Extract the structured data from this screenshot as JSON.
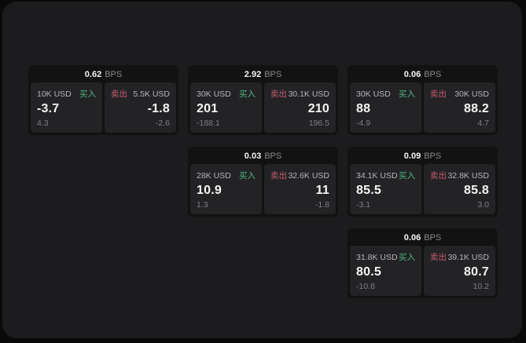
{
  "colors": {
    "page_bg": "#0a0a0a",
    "panel_bg": "#1c1c1e",
    "card_bg": "#121213",
    "subcard_bg": "#232326",
    "value_primary": "#f5f5f5",
    "label_gray": "#b5b5b8",
    "muted_gray": "#7f7f84",
    "bps_gray": "#8a8a8e",
    "buy_green": "#4fb87e",
    "sell_red": "#c65b6e"
  },
  "labels": {
    "bps_unit": "BPS",
    "buy": "买入",
    "sell": "卖出"
  },
  "cards": [
    {
      "row": 1,
      "col": 1,
      "bps": "0.62",
      "buy": {
        "amount": "10K USD",
        "value": "-3.7",
        "sub": "4.3"
      },
      "sell": {
        "amount": "5.5K USD",
        "value": "-1.8",
        "sub": "-2.6"
      }
    },
    {
      "row": 1,
      "col": 2,
      "bps": "2.92",
      "buy": {
        "amount": "30K USD",
        "value": "201",
        "sub": "-188.1"
      },
      "sell": {
        "amount": "30.1K USD",
        "value": "210",
        "sub": "196.5"
      }
    },
    {
      "row": 1,
      "col": 3,
      "bps": "0.06",
      "buy": {
        "amount": "30K USD",
        "value": "88",
        "sub": "-4.9"
      },
      "sell": {
        "amount": "30K USD",
        "value": "88.2",
        "sub": "4.7"
      }
    },
    {
      "row": 2,
      "col": 2,
      "bps": "0.03",
      "buy": {
        "amount": "28K USD",
        "value": "10.9",
        "sub": "1.3"
      },
      "sell": {
        "amount": "32.6K USD",
        "value": "11",
        "sub": "-1.8"
      }
    },
    {
      "row": 2,
      "col": 3,
      "bps": "0.09",
      "buy": {
        "amount": "34.1K USD",
        "value": "85.5",
        "sub": "-3.1"
      },
      "sell": {
        "amount": "32.8K USD",
        "value": "85.8",
        "sub": "3.0"
      }
    },
    {
      "row": 3,
      "col": 3,
      "bps": "0.06",
      "buy": {
        "amount": "31.8K USD",
        "value": "80.5",
        "sub": "-10.8"
      },
      "sell": {
        "amount": "39.1K USD",
        "value": "80.7",
        "sub": "10.2"
      }
    }
  ]
}
